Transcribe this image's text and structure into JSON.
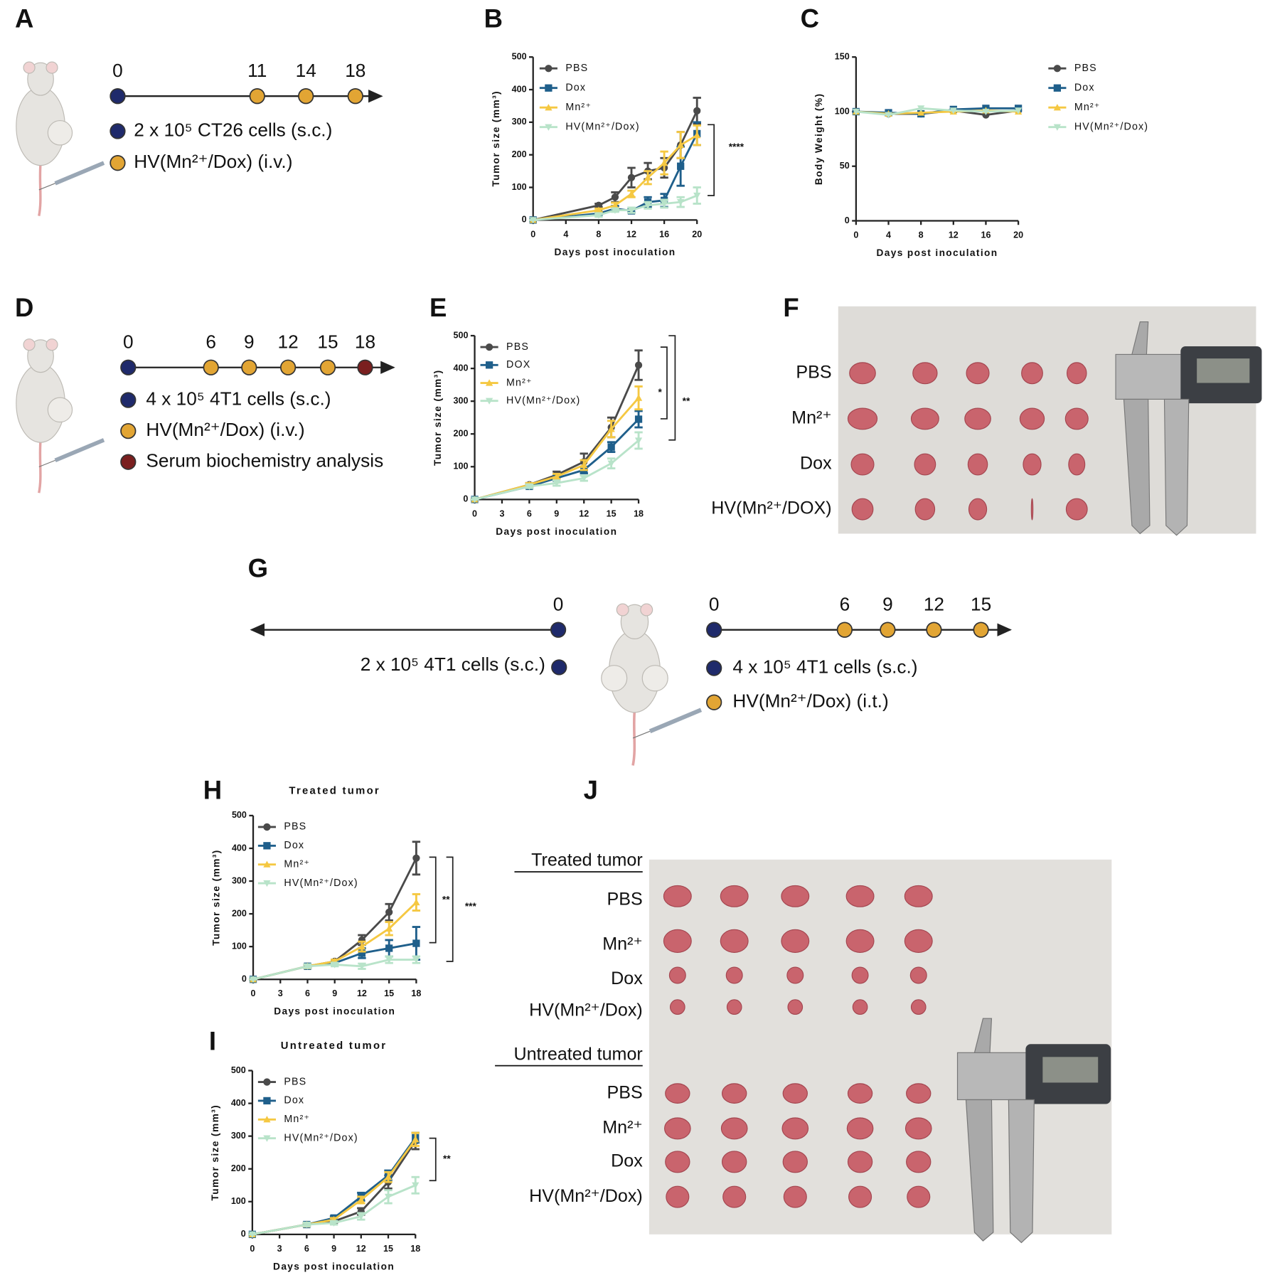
{
  "panel_labels": [
    "A",
    "B",
    "C",
    "D",
    "E",
    "F",
    "G",
    "H",
    "I",
    "J"
  ],
  "timeline_a": {
    "ticks": [
      "0",
      "11",
      "14",
      "18"
    ],
    "legend": [
      "2 x 10⁵ CT26 cells (s.c.)",
      "HV(Mn²⁺/Dox) (i.v.)"
    ]
  },
  "timeline_d": {
    "ticks": [
      "0",
      "6",
      "9",
      "12",
      "15",
      "18"
    ],
    "legend": [
      "4 x 10⁵ 4T1 cells (s.c.)",
      "HV(Mn²⁺/Dox) (i.v.)",
      "Serum biochemistry analysis"
    ]
  },
  "timeline_g": {
    "left_tick": "0",
    "left_legend": "2 x 10⁵ 4T1 cells (s.c.)",
    "ticks": [
      "0",
      "6",
      "9",
      "12",
      "15"
    ],
    "legend": [
      "4 x 10⁵ 4T1 cells (s.c.)",
      "HV(Mn²⁺/Dox) (i.t.)"
    ]
  },
  "photo_f": {
    "rows": [
      "PBS",
      "Mn²⁺",
      "Dox",
      "HV(Mn²⁺/DOX)"
    ]
  },
  "photo_j": {
    "treated_title": "Treated tumor",
    "treated_rows": [
      "PBS",
      "Mn²⁺",
      "Dox",
      "HV(Mn²⁺/Dox)"
    ],
    "untreated_title": "Untreated tumor",
    "untreated_rows": [
      "PBS",
      "Mn²⁺",
      "Dox",
      "HV(Mn²⁺/Dox)"
    ]
  },
  "chart_data": [
    {
      "type": "line",
      "xlabel": "Days post inoculation",
      "ylabel": "Tumor size (mm³)",
      "x": [
        0,
        8,
        10,
        12,
        14,
        16,
        18,
        20
      ],
      "xlim": [
        0,
        20
      ],
      "xticks": [
        0,
        4,
        8,
        12,
        16,
        20
      ],
      "ylim": [
        0,
        500
      ],
      "yticks": [
        0,
        100,
        200,
        300,
        400,
        500
      ],
      "series": [
        {
          "name": "PBS",
          "color": "#4a4a4a",
          "marker": "circle",
          "values": [
            0,
            45,
            70,
            130,
            150,
            160,
            230,
            335
          ],
          "errors": [
            0,
            5,
            15,
            30,
            25,
            30,
            40,
            40
          ]
        },
        {
          "name": "Dox",
          "color": "#1f5f8b",
          "marker": "square",
          "values": [
            0,
            20,
            35,
            28,
            55,
            60,
            165,
            265
          ],
          "errors": [
            0,
            5,
            8,
            5,
            15,
            20,
            60,
            35
          ]
        },
        {
          "name": "Mn²⁺",
          "color": "#f5c842",
          "marker": "triangle-up",
          "values": [
            0,
            30,
            45,
            80,
            130,
            175,
            230,
            260
          ],
          "errors": [
            0,
            5,
            8,
            10,
            20,
            35,
            40,
            30
          ]
        },
        {
          "name": "HV(Mn²⁺/Dox)",
          "color": "#b8e3c9",
          "marker": "triangle-down",
          "values": [
            0,
            15,
            30,
            30,
            45,
            50,
            55,
            75
          ],
          "errors": [
            0,
            5,
            5,
            8,
            10,
            12,
            15,
            25
          ]
        }
      ],
      "significance": [
        "****"
      ]
    },
    {
      "type": "line",
      "xlabel": "Days post inoculation",
      "ylabel": "Body Weight (%)",
      "x": [
        0,
        4,
        8,
        12,
        16,
        20
      ],
      "xlim": [
        0,
        20
      ],
      "xticks": [
        0,
        4,
        8,
        12,
        16,
        20
      ],
      "ylim": [
        0,
        150
      ],
      "yticks": [
        0,
        50,
        100,
        150
      ],
      "series": [
        {
          "name": "PBS",
          "color": "#4a4a4a",
          "marker": "circle",
          "values": [
            100,
            98,
            98,
            101,
            97,
            101
          ]
        },
        {
          "name": "Dox",
          "color": "#1f5f8b",
          "marker": "square",
          "values": [
            100,
            99,
            98,
            102,
            103,
            103
          ]
        },
        {
          "name": "Mn²⁺",
          "color": "#f5c842",
          "marker": "triangle-up",
          "values": [
            100,
            98,
            99,
            100,
            101,
            100
          ]
        },
        {
          "name": "HV(Mn²⁺/Dox)",
          "color": "#b8e3c9",
          "marker": "triangle-down",
          "values": [
            100,
            97,
            103,
            101,
            100,
            101
          ]
        }
      ],
      "significance": []
    },
    {
      "type": "line",
      "xlabel": "Days post inoculation",
      "ylabel": "Tumor size (mm³)",
      "x": [
        0,
        6,
        9,
        12,
        15,
        18
      ],
      "xlim": [
        0,
        18
      ],
      "xticks": [
        0,
        3,
        6,
        9,
        12,
        15,
        18
      ],
      "ylim": [
        0,
        500
      ],
      "yticks": [
        0,
        100,
        200,
        300,
        400,
        500
      ],
      "series": [
        {
          "name": "PBS",
          "color": "#4a4a4a",
          "marker": "circle",
          "values": [
            0,
            45,
            75,
            115,
            220,
            410
          ],
          "errors": [
            0,
            5,
            10,
            25,
            30,
            45
          ]
        },
        {
          "name": "DOX",
          "color": "#1f5f8b",
          "marker": "square",
          "values": [
            0,
            40,
            65,
            90,
            160,
            245
          ],
          "errors": [
            0,
            5,
            8,
            10,
            15,
            25
          ]
        },
        {
          "name": "Mn²⁺",
          "color": "#f5c842",
          "marker": "triangle-up",
          "values": [
            0,
            45,
            70,
            105,
            215,
            310
          ],
          "errors": [
            0,
            5,
            8,
            15,
            25,
            35
          ]
        },
        {
          "name": "HV(Mn²⁺/Dox)",
          "color": "#b8e3c9",
          "marker": "triangle-down",
          "values": [
            0,
            40,
            50,
            65,
            110,
            180
          ],
          "errors": [
            0,
            5,
            8,
            8,
            15,
            25
          ]
        }
      ],
      "significance": [
        "*",
        "**"
      ]
    },
    {
      "type": "line",
      "title": "Treated tumor",
      "xlabel": "Days post inoculation",
      "ylabel": "Tumor size (mm³)",
      "x": [
        0,
        6,
        9,
        12,
        15,
        18
      ],
      "xlim": [
        0,
        18
      ],
      "xticks": [
        0,
        3,
        6,
        9,
        12,
        15,
        18
      ],
      "ylim": [
        0,
        500
      ],
      "yticks": [
        0,
        100,
        200,
        300,
        400,
        500
      ],
      "series": [
        {
          "name": "PBS",
          "color": "#4a4a4a",
          "marker": "circle",
          "values": [
            0,
            40,
            55,
            120,
            205,
            370
          ],
          "errors": [
            0,
            5,
            5,
            15,
            25,
            50
          ]
        },
        {
          "name": "Dox",
          "color": "#1f5f8b",
          "marker": "square",
          "values": [
            0,
            40,
            50,
            80,
            95,
            110
          ],
          "errors": [
            0,
            5,
            5,
            15,
            25,
            50
          ]
        },
        {
          "name": "Mn²⁺",
          "color": "#f5c842",
          "marker": "triangle-up",
          "values": [
            0,
            40,
            55,
            100,
            155,
            235
          ],
          "errors": [
            0,
            5,
            5,
            15,
            20,
            25
          ]
        },
        {
          "name": "HV(Mn²⁺/Dox)",
          "color": "#b8e3c9",
          "marker": "triangle-down",
          "values": [
            0,
            40,
            45,
            40,
            60,
            60
          ],
          "errors": [
            0,
            5,
            5,
            8,
            10,
            10
          ]
        }
      ],
      "significance": [
        "**",
        "***"
      ]
    },
    {
      "type": "line",
      "title": "Untreated tumor",
      "xlabel": "Days post inoculation",
      "ylabel": "Tumor size (mm³)",
      "x": [
        0,
        6,
        9,
        12,
        15,
        18
      ],
      "xlim": [
        0,
        18
      ],
      "xticks": [
        0,
        3,
        6,
        9,
        12,
        15,
        18
      ],
      "ylim": [
        0,
        500
      ],
      "yticks": [
        0,
        100,
        200,
        300,
        400,
        500
      ],
      "series": [
        {
          "name": "PBS",
          "color": "#4a4a4a",
          "marker": "circle",
          "values": [
            0,
            30,
            40,
            70,
            160,
            285
          ],
          "errors": [
            0,
            5,
            5,
            10,
            20,
            25
          ]
        },
        {
          "name": "Dox",
          "color": "#1f5f8b",
          "marker": "square",
          "values": [
            0,
            30,
            50,
            115,
            180,
            295
          ],
          "errors": [
            0,
            5,
            5,
            12,
            15,
            15
          ]
        },
        {
          "name": "Mn²⁺",
          "color": "#f5c842",
          "marker": "triangle-up",
          "values": [
            0,
            30,
            45,
            105,
            175,
            290
          ],
          "errors": [
            0,
            5,
            5,
            10,
            15,
            20
          ]
        },
        {
          "name": "HV(Mn²⁺/Dox)",
          "color": "#b8e3c9",
          "marker": "triangle-down",
          "values": [
            0,
            30,
            35,
            55,
            115,
            150
          ],
          "errors": [
            0,
            5,
            5,
            10,
            20,
            25
          ]
        }
      ],
      "significance": [
        "**"
      ]
    }
  ]
}
